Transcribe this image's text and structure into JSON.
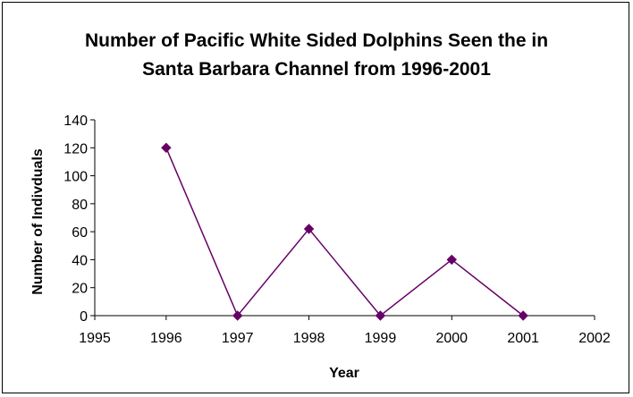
{
  "chart_data": {
    "type": "line",
    "title_lines": [
      "Number of Pacific White Sided Dolphins Seen the in",
      "Santa Barbara Channel from 1996-2001"
    ],
    "xlabel": "Year",
    "ylabel": "Number of Indivduals",
    "xlim": [
      1995,
      2002
    ],
    "ylim": [
      0,
      140
    ],
    "xticks": [
      1995,
      1996,
      1997,
      1998,
      1999,
      2000,
      2001,
      2002
    ],
    "yticks": [
      0,
      20,
      40,
      60,
      80,
      100,
      120,
      140
    ],
    "series": [
      {
        "x": [
          1996,
          1997,
          1998,
          1999,
          2000,
          2001
        ],
        "y": [
          120,
          0,
          62,
          0,
          40,
          0
        ]
      }
    ],
    "marker": "diamond",
    "grid": false,
    "legend": "none",
    "series_color": "#660066"
  }
}
